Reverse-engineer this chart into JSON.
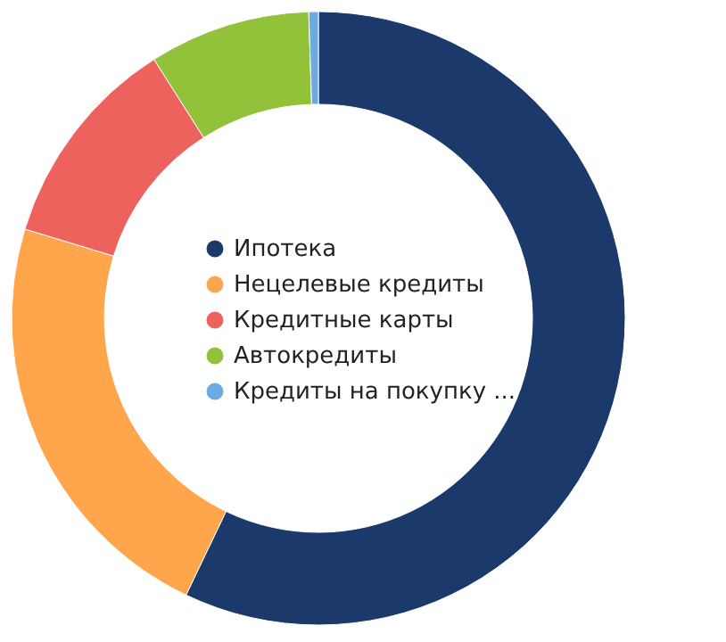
{
  "chart_data": {
    "type": "donut",
    "categories": [
      "Ипотека",
      "Нецелевые кредиты",
      "Кредитные карты",
      "Автокредиты",
      "Кредиты на покупку ..."
    ],
    "values": [
      57.1,
      22.6,
      11.3,
      8.5,
      0.5
    ],
    "colors": [
      "#1b3a6b",
      "#ffa64d",
      "#ee625e",
      "#92c13a",
      "#6aacdf"
    ],
    "legend": "center"
  }
}
